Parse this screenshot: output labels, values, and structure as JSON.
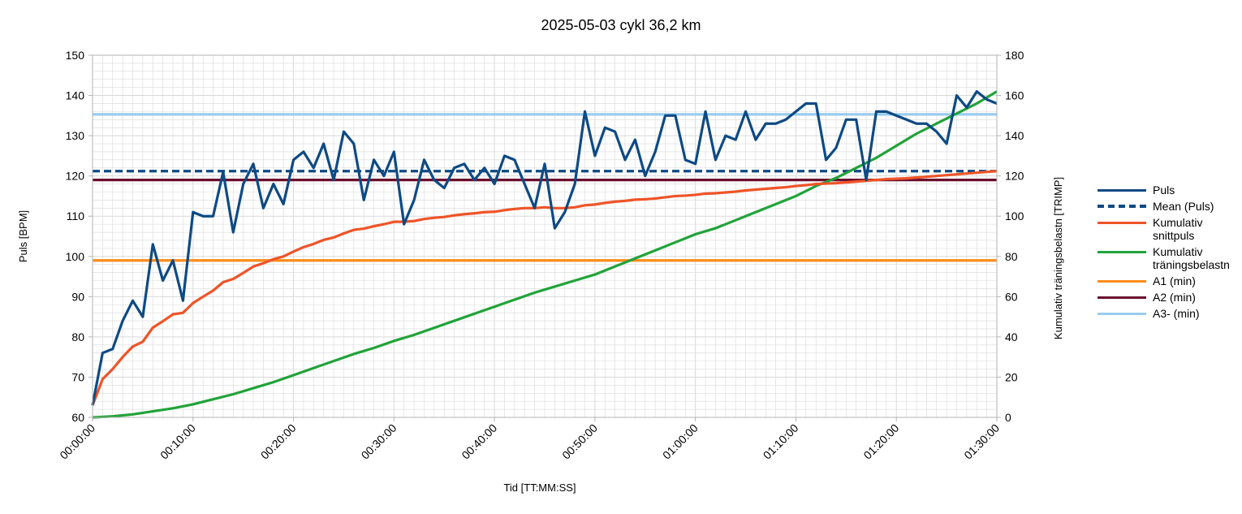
{
  "colors": {
    "puls": "#0e4a84",
    "mean": "#0e4a84",
    "kum_puls": "#ef5428",
    "kum_trimp": "#21a339",
    "a1": "#ff8c1a",
    "a2": "#6b0d2c",
    "a3": "#99ccee",
    "grid": "#d9d9d9",
    "axis": "#b3b3b3"
  },
  "chart_data": {
    "type": "line",
    "title": "2025-05-03 cykl 36,2 km",
    "xlabel": "Tid [TT:MM:SS]",
    "ylabel": "Puls [BPM]",
    "y2label": "Kumulativ träningsbelastn [TRIMP]",
    "x_unit": "minutes",
    "xlim": [
      0,
      90
    ],
    "ylim": [
      60,
      150
    ],
    "y2lim": [
      0,
      180
    ],
    "x_ticks": [
      "00:00:00",
      "00:10:00",
      "00:20:00",
      "00:30:00",
      "00:40:00",
      "00:50:00",
      "01:00:00",
      "01:10:00",
      "01:20:00",
      "01:30:00"
    ],
    "y_ticks": [
      60,
      70,
      80,
      90,
      100,
      110,
      120,
      130,
      140,
      150
    ],
    "y2_ticks": [
      0,
      20,
      40,
      60,
      80,
      100,
      120,
      140,
      160,
      180
    ],
    "grid": true,
    "legend_position": "right",
    "series": [
      {
        "name": "Puls",
        "axis": "left",
        "style": "solid",
        "x": [
          0,
          1,
          2,
          3,
          4,
          5,
          6,
          7,
          8,
          9,
          10,
          11,
          12,
          13,
          14,
          15,
          16,
          17,
          18,
          19,
          20,
          21,
          22,
          23,
          24,
          25,
          26,
          27,
          28,
          29,
          30,
          31,
          32,
          33,
          34,
          35,
          36,
          37,
          38,
          39,
          40,
          41,
          42,
          43,
          44,
          45,
          46,
          47,
          48,
          49,
          50,
          51,
          52,
          53,
          54,
          55,
          56,
          57,
          58,
          59,
          60,
          61,
          62,
          63,
          64,
          65,
          66,
          67,
          68,
          69,
          70,
          71,
          72,
          73,
          74,
          75,
          76,
          77,
          78,
          79,
          80,
          81,
          82,
          83,
          84,
          85,
          86,
          87,
          88,
          89,
          90
        ],
        "values": [
          63,
          76,
          77,
          84,
          89,
          85,
          103,
          94,
          99,
          89,
          111,
          110,
          110,
          121,
          106,
          118,
          123,
          112,
          118,
          113,
          124,
          126,
          122,
          128,
          119,
          131,
          128,
          114,
          124,
          120,
          126,
          108,
          114,
          124,
          119,
          117,
          122,
          123,
          119,
          122,
          118,
          125,
          124,
          118,
          112,
          123,
          107,
          111,
          118,
          136,
          125,
          132,
          131,
          124,
          129,
          120,
          126,
          135,
          135,
          124,
          123,
          136,
          124,
          130,
          129,
          136,
          129,
          133,
          133,
          134,
          136,
          138,
          138,
          124,
          127,
          134,
          134,
          119,
          136,
          136,
          135,
          134,
          133,
          133,
          131,
          128,
          140,
          137,
          141,
          139,
          138
        ]
      },
      {
        "name": "Mean (Puls)",
        "axis": "left",
        "style": "dashed",
        "x": [
          0,
          90
        ],
        "values": [
          121.2,
          121.2
        ]
      },
      {
        "name": "Kumulativ snittpuls",
        "axis": "left",
        "style": "solid",
        "x": [
          0,
          1,
          2,
          3,
          4,
          5,
          6,
          7,
          8,
          9,
          10,
          11,
          12,
          13,
          14,
          15,
          16,
          17,
          18,
          19,
          20,
          21,
          22,
          23,
          24,
          25,
          26,
          27,
          28,
          29,
          30,
          31,
          32,
          33,
          34,
          35,
          36,
          37,
          38,
          39,
          40,
          41,
          42,
          43,
          44,
          45,
          46,
          47,
          48,
          49,
          50,
          51,
          52,
          53,
          54,
          55,
          56,
          57,
          58,
          59,
          60,
          61,
          62,
          63,
          64,
          65,
          66,
          67,
          68,
          69,
          70,
          71,
          72,
          73,
          74,
          75,
          76,
          77,
          78,
          79,
          80,
          81,
          82,
          83,
          84,
          85,
          86,
          87,
          88,
          89,
          90
        ],
        "values": [
          63,
          69.5,
          72,
          75,
          77.6,
          78.8,
          82.3,
          83.9,
          85.6,
          86,
          88.4,
          90,
          91.5,
          93.6,
          94.4,
          95.9,
          97.5,
          98.3,
          99.3,
          100,
          101.2,
          102.3,
          103.1,
          104.1,
          104.7,
          105.7,
          106.6,
          106.9,
          107.5,
          108,
          108.6,
          108.6,
          108.8,
          109.3,
          109.6,
          109.8,
          110.2,
          110.5,
          110.7,
          111,
          111.1,
          111.5,
          111.8,
          112,
          112,
          112.2,
          112,
          112,
          112.2,
          112.7,
          112.9,
          113.3,
          113.6,
          113.8,
          114.1,
          114.2,
          114.4,
          114.7,
          115,
          115.1,
          115.3,
          115.6,
          115.7,
          115.9,
          116.1,
          116.4,
          116.6,
          116.8,
          117,
          117.2,
          117.5,
          117.7,
          118,
          118.1,
          118.2,
          118.4,
          118.6,
          118.8,
          119,
          119.2,
          119.3,
          119.4,
          119.6,
          119.8,
          120,
          120.2,
          120.4,
          120.6,
          120.8,
          121,
          121.2
        ]
      },
      {
        "name": "Kumulativ träningsbelastn",
        "axis": "right",
        "style": "solid",
        "x": [
          0,
          2,
          4,
          6,
          8,
          10,
          12,
          14,
          16,
          18,
          20,
          22,
          24,
          26,
          28,
          30,
          32,
          34,
          36,
          38,
          40,
          42,
          44,
          46,
          48,
          50,
          52,
          54,
          56,
          58,
          60,
          62,
          64,
          66,
          68,
          70,
          72,
          74,
          76,
          78,
          80,
          82,
          84,
          86,
          88,
          90
        ],
        "values": [
          0,
          0.5,
          1.5,
          3,
          4.5,
          6.5,
          9,
          11.5,
          14.5,
          17.5,
          21,
          24.5,
          28,
          31.5,
          34.5,
          38,
          41,
          44.5,
          48,
          51.5,
          55,
          58.5,
          62,
          65,
          68,
          71,
          75,
          79,
          83,
          87,
          91,
          94,
          98,
          102,
          106,
          110,
          115,
          119,
          124,
          129,
          135,
          141,
          146,
          151,
          156,
          162
        ]
      },
      {
        "name": "A1 (min)",
        "axis": "left",
        "style": "solid",
        "x": [
          0,
          90
        ],
        "values": [
          99,
          99
        ]
      },
      {
        "name": "A2 (min)",
        "axis": "left",
        "style": "solid",
        "x": [
          0,
          90
        ],
        "values": [
          119,
          119
        ]
      },
      {
        "name": "A3- (min)",
        "axis": "left",
        "style": "solid",
        "x": [
          0,
          90
        ],
        "values": [
          135.3,
          135.3
        ]
      }
    ]
  },
  "legend": {
    "items": [
      {
        "label": "Puls",
        "color": "#0e4a84",
        "dashed": false
      },
      {
        "label": "Mean (Puls)",
        "color": "#0e4a84",
        "dashed": true
      },
      {
        "label": "Kumulativ\nsnittpuls",
        "color": "#ef5428",
        "dashed": false
      },
      {
        "label": "Kumulativ\nträningsbelastn",
        "color": "#21a339",
        "dashed": false
      },
      {
        "label": "A1 (min)",
        "color": "#ff8c1a",
        "dashed": false
      },
      {
        "label": "A2 (min)",
        "color": "#6b0d2c",
        "dashed": false
      },
      {
        "label": "A3- (min)",
        "color": "#99ccee",
        "dashed": false
      }
    ]
  }
}
